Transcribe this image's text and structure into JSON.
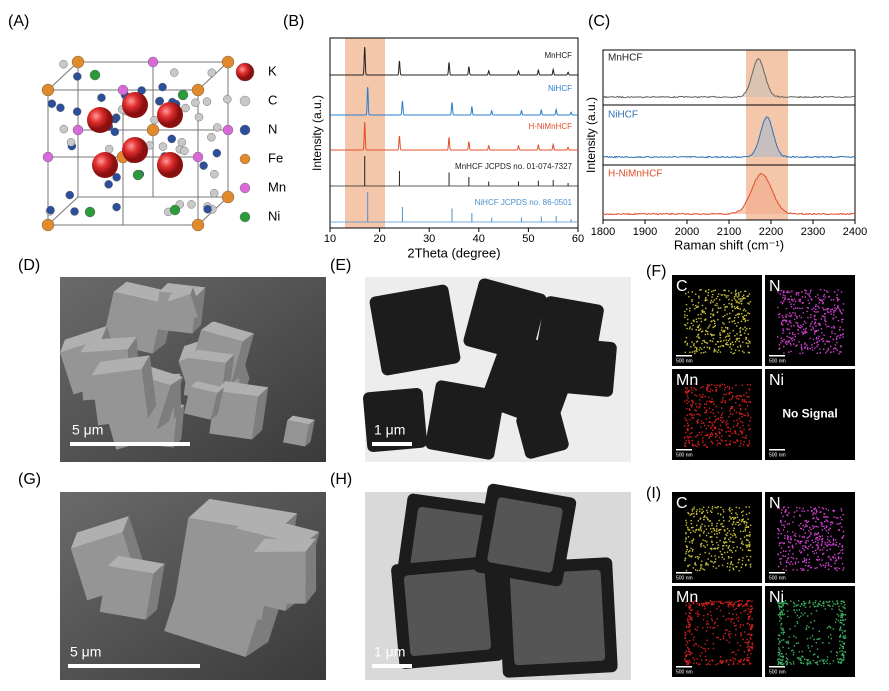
{
  "panels": {
    "A": {
      "label": "(A)",
      "legend": [
        "K",
        "C",
        "N",
        "Fe",
        "Mn",
        "Ni"
      ]
    },
    "B": {
      "label": "(B)",
      "xlabel": "2Theta (degree)",
      "ylabel": "Intensity (a.u.)",
      "xticks": [
        10,
        20,
        30,
        40,
        50,
        60
      ],
      "series": [
        "MnHCF",
        "NiHCF",
        "H-NiMnHCF",
        "MnHCF JCPDS no. 01-074-7327",
        "NiHCF JCPDS no. 86-0501"
      ]
    },
    "C": {
      "label": "(C)",
      "xlabel": "Raman shift (cm⁻¹)",
      "ylabel": "Intensity (a.u.)",
      "xticks": [
        1800,
        1900,
        2000,
        2100,
        2200,
        2300,
        2400
      ],
      "series": [
        "MnHCF",
        "NiHCF",
        "H-NiMnHCF"
      ]
    },
    "D": {
      "label": "(D)",
      "scale": "5 μm"
    },
    "E": {
      "label": "(E)",
      "scale": "1 μm"
    },
    "F": {
      "label": "(F)",
      "maps": [
        "C",
        "N",
        "Mn",
        "Ni"
      ],
      "note": "No Signal",
      "scale": "500 nm"
    },
    "G": {
      "label": "(G)",
      "scale": "5 μm"
    },
    "H": {
      "label": "(H)",
      "scale": "1 μm"
    },
    "I": {
      "label": "(I)",
      "maps": [
        "C",
        "N",
        "Mn",
        "Ni"
      ],
      "scale": "500 nm"
    }
  }
}
